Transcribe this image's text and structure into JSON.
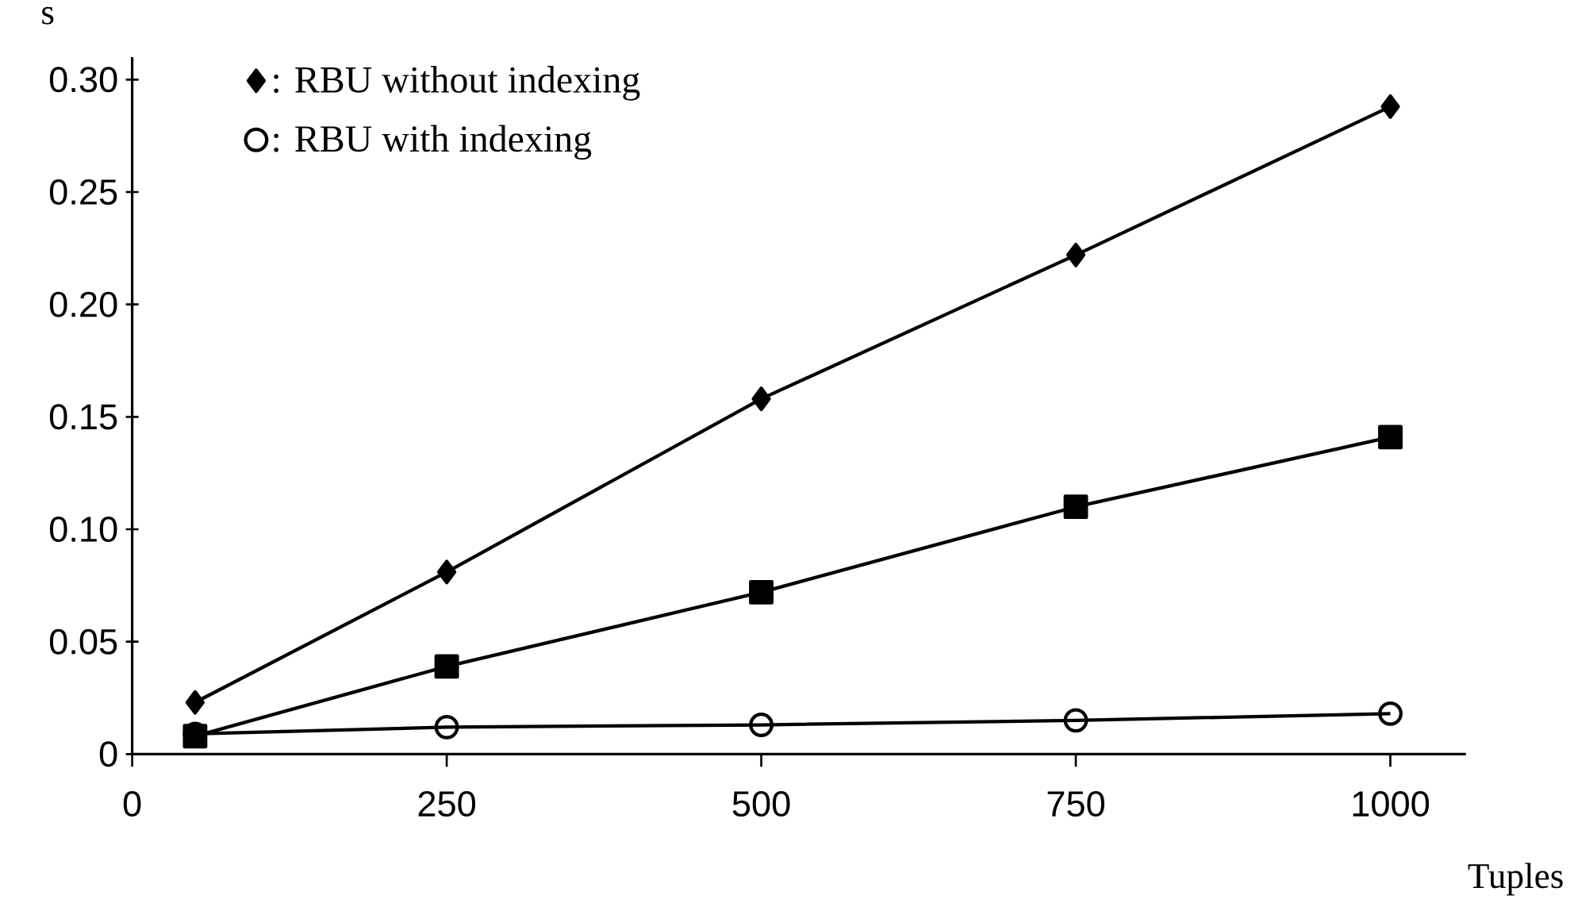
{
  "chart_data": {
    "type": "line",
    "xlabel": "Tuples",
    "ylabel": "s",
    "x": [
      50,
      250,
      500,
      750,
      1000
    ],
    "xlim": [
      0,
      1060
    ],
    "ylim": [
      0,
      0.31
    ],
    "xticks": [
      0,
      250,
      500,
      750,
      1000
    ],
    "yticks": [
      {
        "value": 0,
        "label": "0"
      },
      {
        "value": 0.05,
        "label": "0.05"
      },
      {
        "value": 0.1,
        "label": "0.10"
      },
      {
        "value": 0.15,
        "label": "0.15"
      },
      {
        "value": 0.2,
        "label": "0.20"
      },
      {
        "value": 0.25,
        "label": "0.25"
      },
      {
        "value": 0.3,
        "label": "0.30"
      }
    ],
    "legend": "top left",
    "grid": false,
    "line_style": "solid",
    "series": [
      {
        "name": ":  RBU without indexing",
        "color": "#000000",
        "marker": "diamond",
        "values": [
          0.023,
          0.081,
          0.158,
          0.222,
          0.288
        ]
      },
      {
        "color": "#000000",
        "marker": "square",
        "values": [
          0.008,
          0.039,
          0.072,
          0.11,
          0.141
        ]
      },
      {
        "name": ":  RBU with indexing",
        "color": "#000000",
        "marker": "circle",
        "values": [
          0.009,
          0.012,
          0.013,
          0.015,
          0.018
        ]
      }
    ]
  }
}
